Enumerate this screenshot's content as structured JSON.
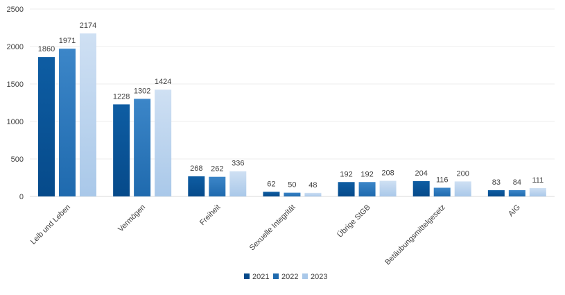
{
  "chart_data": {
    "type": "bar",
    "title": "",
    "xlabel": "",
    "ylabel": "",
    "ylim": [
      0,
      2500
    ],
    "yticks": [
      0,
      500,
      1000,
      1500,
      2000,
      2500
    ],
    "grid": true,
    "legend_position": "bottom",
    "categories": [
      "Leib und Leben",
      "Vermögen",
      "Freiheit",
      "Sexuelle Integrität",
      "Übrige StGB",
      "Betäubungsmittelgesetz",
      "AIG"
    ],
    "series": [
      {
        "name": "2021",
        "values": [
          1860,
          1228,
          268,
          62,
          192,
          204,
          83
        ]
      },
      {
        "name": "2022",
        "values": [
          1971,
          1302,
          262,
          50,
          192,
          116,
          84
        ]
      },
      {
        "name": "2023",
        "values": [
          2174,
          1424,
          336,
          48,
          208,
          200,
          111
        ]
      }
    ],
    "colors": {
      "2021": {
        "top": "#0e5da3",
        "bottom": "#064a8a"
      },
      "2022": {
        "top": "#3c86c8",
        "bottom": "#1f6aae"
      },
      "2023": {
        "top": "#cfe0f3",
        "bottom": "#a9c8e9"
      }
    }
  }
}
